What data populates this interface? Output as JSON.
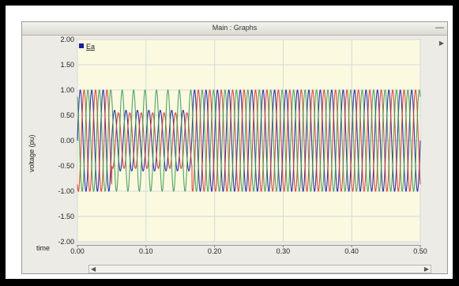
{
  "window": {
    "title": "Main : Graphs"
  },
  "chart_data": {
    "type": "line",
    "legend": [
      "Ea"
    ],
    "legend_placement": "top-left",
    "xlabel": "time",
    "ylabel": "voltage (pu)",
    "xlim": [
      0.0,
      0.5
    ],
    "ylim": [
      -2.0,
      2.0
    ],
    "xticks": [
      "0.00",
      "0.10",
      "0.20",
      "0.30",
      "0.40",
      "0.50"
    ],
    "yticks": [
      "2.00",
      "1.50",
      "1.00",
      "0.50",
      "0.00",
      "-0.50",
      "-1.00",
      "-1.50",
      "-2.00"
    ],
    "grid": true,
    "series": [
      {
        "color": "#1a1aa6",
        "frequency_hz": 60,
        "phase_deg": 0,
        "amplitude": [
          {
            "t_end": 0.05,
            "a": 1.0
          },
          {
            "t_end": 0.167,
            "a": 0.6
          },
          {
            "t_end": 0.5,
            "a": 1.0
          }
        ]
      },
      {
        "color": "#d23a3a",
        "frequency_hz": 60,
        "phase_deg": -120,
        "amplitude": [
          {
            "t_end": 0.05,
            "a": 1.0
          },
          {
            "t_end": 0.167,
            "a": 0.55
          },
          {
            "t_end": 0.5,
            "a": 1.0
          }
        ]
      },
      {
        "color": "#3c9a5a",
        "frequency_hz": 60,
        "phase_deg": 120,
        "amplitude": [
          {
            "t_end": 0.05,
            "a": 1.0
          },
          {
            "t_end": 0.167,
            "a": 1.0
          },
          {
            "t_end": 0.5,
            "a": 1.0
          }
        ]
      }
    ]
  }
}
